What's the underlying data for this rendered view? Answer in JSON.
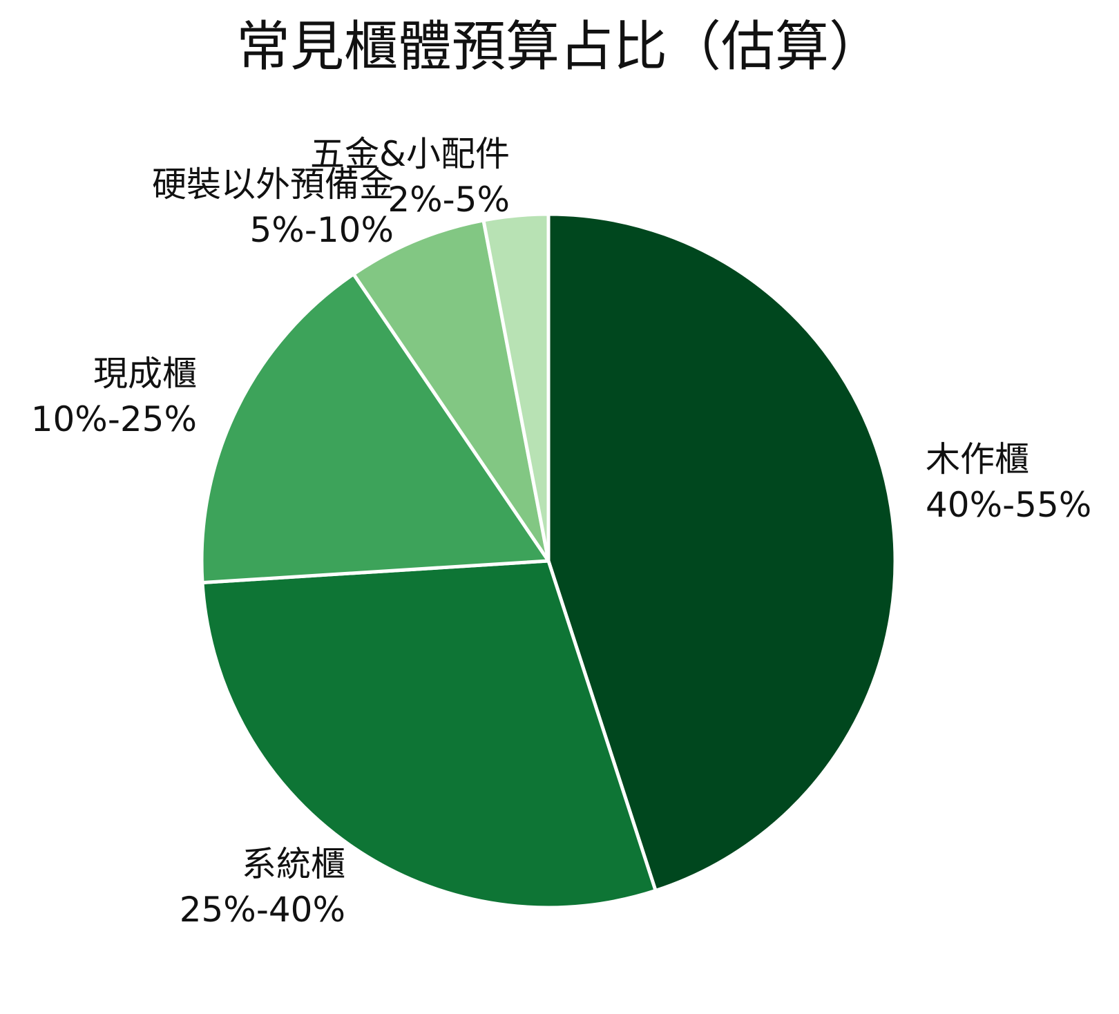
{
  "chart_data": {
    "type": "pie",
    "title": "常見櫃體預算占比（估算）",
    "slices": [
      {
        "name": "木作櫃",
        "range": "40%-55%",
        "value": 45,
        "color": "#00471E"
      },
      {
        "name": "系統櫃",
        "range": "25%-40%",
        "value": 29,
        "color": "#0E7535"
      },
      {
        "name": "現成櫃",
        "range": "10%-25%",
        "value": 16.5,
        "color": "#3DA35A"
      },
      {
        "name": "硬裝以外預備金",
        "range": "5%-10%",
        "value": 6.5,
        "color": "#82C783"
      },
      {
        "name": "五金&小配件",
        "range": "2%-5%",
        "value": 3,
        "color": "#B8E2B4"
      }
    ],
    "start": "12 o'clock",
    "direction": "clockwise",
    "separator_color": "#ffffff"
  }
}
